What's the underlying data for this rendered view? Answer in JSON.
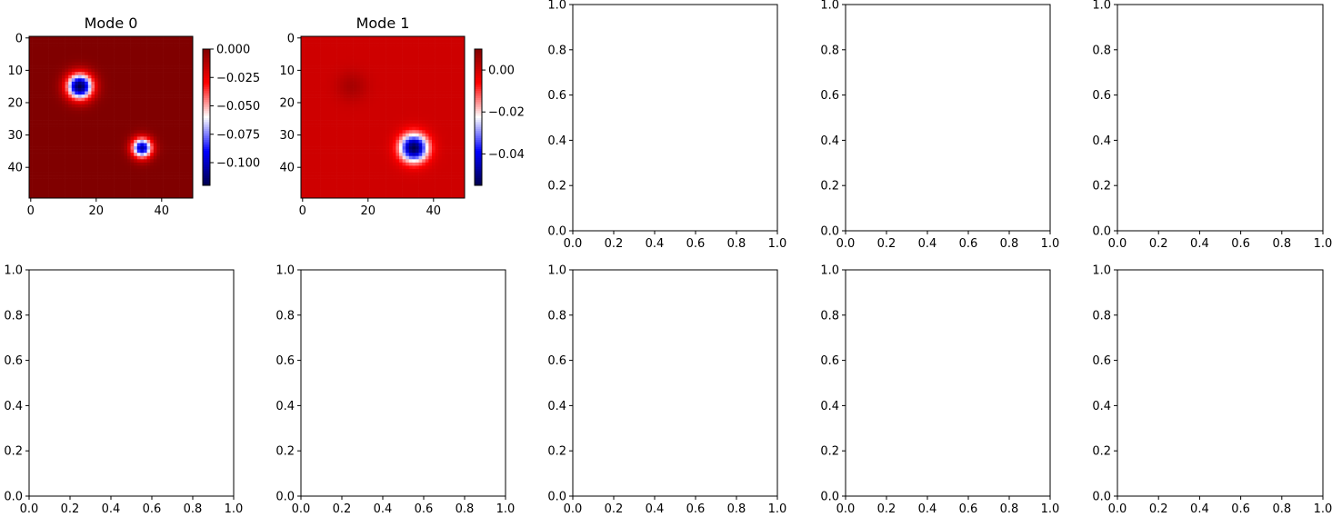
{
  "figure": {
    "background": "#ffffff"
  },
  "chart_data": [
    {
      "type": "heatmap",
      "panel": "row0-col0",
      "title": "Mode 0",
      "grid_size": 50,
      "xticks": [
        "0",
        "20",
        "40"
      ],
      "yticks": [
        "0",
        "10",
        "20",
        "30",
        "40"
      ],
      "colormap": "seismic",
      "background_value": 0.0,
      "blobs": [
        {
          "cx": 15,
          "cy": 15,
          "sigma": 2.8,
          "amplitude": -0.12
        },
        {
          "cx": 34,
          "cy": 34,
          "sigma": 2.2,
          "amplitude": -0.105
        }
      ],
      "colorbar": {
        "min": -0.12,
        "max": 0.0,
        "ticks": [
          0.0,
          -0.025,
          -0.05,
          -0.075,
          -0.1
        ],
        "tick_labels": [
          "0.000",
          "−0.025",
          "−0.050",
          "−0.075",
          "−0.100"
        ]
      }
    },
    {
      "type": "heatmap",
      "panel": "row0-col1",
      "title": "Mode 1",
      "grid_size": 50,
      "xticks": [
        "0",
        "20",
        "40"
      ],
      "yticks": [
        "0",
        "10",
        "20",
        "30",
        "40"
      ],
      "colormap": "seismic",
      "background_value": 0.0,
      "blobs": [
        {
          "cx": 15,
          "cy": 15,
          "sigma": 3.2,
          "amplitude": 0.005
        },
        {
          "cx": 34,
          "cy": 34,
          "sigma": 3.0,
          "amplitude": -0.055
        }
      ],
      "colorbar": {
        "min": -0.055,
        "max": 0.01,
        "ticks": [
          0.0,
          -0.02,
          -0.04
        ],
        "tick_labels": [
          "0.00",
          "−0.02",
          "−0.04"
        ]
      }
    },
    {
      "type": "empty",
      "panel": "row0-col2",
      "xlim": [
        0,
        1
      ],
      "ylim": [
        0,
        1
      ],
      "xticks": [
        "0.0",
        "0.2",
        "0.4",
        "0.6",
        "0.8",
        "1.0"
      ],
      "yticks": [
        "0.0",
        "0.2",
        "0.4",
        "0.6",
        "0.8",
        "1.0"
      ]
    },
    {
      "type": "empty",
      "panel": "row0-col3",
      "xlim": [
        0,
        1
      ],
      "ylim": [
        0,
        1
      ],
      "xticks": [
        "0.0",
        "0.2",
        "0.4",
        "0.6",
        "0.8",
        "1.0"
      ],
      "yticks": [
        "0.0",
        "0.2",
        "0.4",
        "0.6",
        "0.8",
        "1.0"
      ]
    },
    {
      "type": "empty",
      "panel": "row0-col4",
      "xlim": [
        0,
        1
      ],
      "ylim": [
        0,
        1
      ],
      "xticks": [
        "0.0",
        "0.2",
        "0.4",
        "0.6",
        "0.8",
        "1.0"
      ],
      "yticks": [
        "0.0",
        "0.2",
        "0.4",
        "0.6",
        "0.8",
        "1.0"
      ]
    },
    {
      "type": "empty",
      "panel": "row1-col0",
      "xlim": [
        0,
        1
      ],
      "ylim": [
        0,
        1
      ],
      "xticks": [
        "0.0",
        "0.2",
        "0.4",
        "0.6",
        "0.8",
        "1.0"
      ],
      "yticks": [
        "0.0",
        "0.2",
        "0.4",
        "0.6",
        "0.8",
        "1.0"
      ]
    },
    {
      "type": "empty",
      "panel": "row1-col1",
      "xlim": [
        0,
        1
      ],
      "ylim": [
        0,
        1
      ],
      "xticks": [
        "0.0",
        "0.2",
        "0.4",
        "0.6",
        "0.8",
        "1.0"
      ],
      "yticks": [
        "0.0",
        "0.2",
        "0.4",
        "0.6",
        "0.8",
        "1.0"
      ]
    },
    {
      "type": "empty",
      "panel": "row1-col2",
      "xlim": [
        0,
        1
      ],
      "ylim": [
        0,
        1
      ],
      "xticks": [
        "0.0",
        "0.2",
        "0.4",
        "0.6",
        "0.8",
        "1.0"
      ],
      "yticks": [
        "0.0",
        "0.2",
        "0.4",
        "0.6",
        "0.8",
        "1.0"
      ]
    },
    {
      "type": "empty",
      "panel": "row1-col3",
      "xlim": [
        0,
        1
      ],
      "ylim": [
        0,
        1
      ],
      "xticks": [
        "0.0",
        "0.2",
        "0.4",
        "0.6",
        "0.8",
        "1.0"
      ],
      "yticks": [
        "0.0",
        "0.2",
        "0.4",
        "0.6",
        "0.8",
        "1.0"
      ]
    },
    {
      "type": "empty",
      "panel": "row1-col4",
      "xlim": [
        0,
        1
      ],
      "ylim": [
        0,
        1
      ],
      "xticks": [
        "0.0",
        "0.2",
        "0.4",
        "0.6",
        "0.8",
        "1.0"
      ],
      "yticks": [
        "0.0",
        "0.2",
        "0.4",
        "0.6",
        "0.8",
        "1.0"
      ]
    }
  ]
}
